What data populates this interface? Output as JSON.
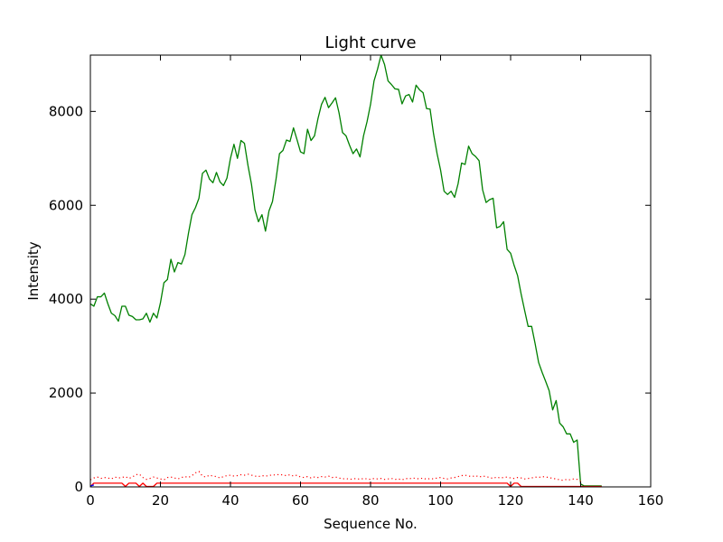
{
  "chart_data": {
    "type": "line",
    "title": "Light curve",
    "xlabel": "Sequence No.",
    "ylabel": "Intensity",
    "xlim": [
      0,
      160
    ],
    "ylim": [
      0,
      9200
    ],
    "xticks": [
      0,
      20,
      40,
      60,
      80,
      100,
      120,
      140,
      160
    ],
    "yticks": [
      0,
      2000,
      4000,
      6000,
      8000
    ],
    "grid": false,
    "legend": "none",
    "series": [
      {
        "color": "#008000",
        "style": "solid",
        "x": [
          0,
          1,
          2,
          3,
          4,
          5,
          6,
          7,
          8,
          9,
          10,
          11,
          12,
          13,
          14,
          15,
          16,
          17,
          18,
          19,
          20,
          21,
          22,
          23,
          24,
          25,
          26,
          27,
          28,
          29,
          30,
          31,
          32,
          33,
          34,
          35,
          36,
          37,
          38,
          39,
          40,
          41,
          42,
          43,
          44,
          45,
          46,
          47,
          48,
          49,
          50,
          51,
          52,
          53,
          54,
          55,
          56,
          57,
          58,
          59,
          60,
          61,
          62,
          63,
          64,
          65,
          66,
          67,
          68,
          69,
          70,
          71,
          72,
          73,
          74,
          75,
          76,
          77,
          78,
          79,
          80,
          81,
          82,
          83,
          84,
          85,
          86,
          87,
          88,
          89,
          90,
          91,
          92,
          93,
          94,
          95,
          96,
          97,
          98,
          99,
          100,
          101,
          102,
          103,
          104,
          105,
          106,
          107,
          108,
          109,
          110,
          111,
          112,
          113,
          114,
          115,
          116,
          117,
          118,
          119,
          120,
          121,
          122,
          123,
          124,
          125,
          126,
          127,
          128,
          129,
          130,
          131,
          132,
          133,
          134,
          135,
          136,
          137,
          138,
          139,
          140,
          141,
          142,
          143,
          144,
          145,
          146
        ],
        "y": [
          3900,
          3850,
          4050,
          4050,
          4130,
          3900,
          3700,
          3650,
          3530,
          3850,
          3850,
          3660,
          3630,
          3560,
          3560,
          3580,
          3700,
          3510,
          3700,
          3600,
          3920,
          4350,
          4420,
          4850,
          4580,
          4780,
          4750,
          4950,
          5400,
          5800,
          5950,
          6150,
          6680,
          6750,
          6560,
          6480,
          6700,
          6500,
          6420,
          6580,
          7000,
          7300,
          7000,
          7380,
          7320,
          6850,
          6450,
          5900,
          5650,
          5800,
          5450,
          5880,
          6080,
          6550,
          7100,
          7170,
          7390,
          7360,
          7650,
          7400,
          7140,
          7100,
          7620,
          7380,
          7480,
          7850,
          8150,
          8300,
          8080,
          8180,
          8290,
          7970,
          7550,
          7480,
          7280,
          7100,
          7200,
          7030,
          7480,
          7780,
          8150,
          8650,
          8900,
          9200,
          9000,
          8650,
          8570,
          8480,
          8470,
          8160,
          8330,
          8360,
          8200,
          8560,
          8460,
          8400,
          8060,
          8050,
          7520,
          7100,
          6750,
          6300,
          6230,
          6300,
          6170,
          6460,
          6900,
          6870,
          7260,
          7100,
          7040,
          6950,
          6330,
          6060,
          6120,
          6150,
          5520,
          5550,
          5650,
          5060,
          4980,
          4720,
          4500,
          4110,
          3760,
          3420,
          3420,
          3050,
          2650,
          2440,
          2250,
          2050,
          1640,
          1840,
          1360,
          1280,
          1130,
          1130,
          950,
          1000,
          60,
          20,
          20,
          20,
          20,
          20,
          20
        ]
      },
      {
        "color": "#ff0000",
        "style": "solid",
        "x": [
          0,
          1,
          2,
          3,
          4,
          5,
          6,
          7,
          8,
          9,
          10,
          11,
          12,
          13,
          14,
          15,
          16,
          17,
          18,
          19,
          20,
          21,
          22,
          23,
          24,
          25,
          26,
          27,
          28,
          29,
          30,
          31,
          32,
          33,
          34,
          35,
          36,
          37,
          38,
          39,
          40,
          41,
          42,
          43,
          44,
          45,
          46,
          47,
          48,
          49,
          50,
          51,
          52,
          53,
          54,
          55,
          56,
          57,
          58,
          59,
          60,
          61,
          62,
          63,
          64,
          65,
          66,
          67,
          68,
          69,
          70,
          71,
          72,
          73,
          74,
          75,
          76,
          77,
          78,
          79,
          80,
          81,
          82,
          83,
          84,
          85,
          86,
          87,
          88,
          89,
          90,
          91,
          92,
          93,
          94,
          95,
          96,
          97,
          98,
          99,
          100,
          101,
          102,
          103,
          104,
          105,
          106,
          107,
          108,
          109,
          110,
          111,
          112,
          113,
          114,
          115,
          116,
          117,
          118,
          119,
          120,
          121,
          122,
          123,
          124,
          125,
          126,
          127,
          128,
          129,
          130,
          131,
          132,
          133,
          134,
          135,
          136,
          137,
          138,
          139,
          140,
          141,
          142,
          143,
          144,
          145,
          146
        ],
        "y": [
          10,
          80,
          80,
          80,
          80,
          80,
          80,
          80,
          80,
          80,
          10,
          80,
          80,
          80,
          10,
          80,
          10,
          10,
          10,
          80,
          80,
          80,
          80,
          80,
          80,
          80,
          80,
          80,
          80,
          80,
          80,
          80,
          80,
          80,
          80,
          80,
          80,
          80,
          80,
          80,
          80,
          80,
          80,
          80,
          80,
          80,
          80,
          80,
          80,
          80,
          80,
          80,
          80,
          80,
          80,
          80,
          80,
          80,
          80,
          80,
          80,
          80,
          80,
          80,
          80,
          80,
          80,
          80,
          80,
          80,
          80,
          80,
          80,
          80,
          80,
          80,
          80,
          80,
          80,
          80,
          80,
          80,
          80,
          80,
          80,
          80,
          80,
          80,
          80,
          80,
          80,
          80,
          80,
          80,
          80,
          80,
          80,
          80,
          80,
          80,
          80,
          80,
          80,
          80,
          80,
          80,
          80,
          80,
          80,
          80,
          80,
          80,
          80,
          80,
          80,
          80,
          80,
          80,
          80,
          80,
          10,
          80,
          80,
          10,
          10,
          10,
          10,
          10,
          10,
          10,
          10,
          10,
          10,
          10,
          10,
          10,
          10,
          10,
          10,
          10,
          10,
          10,
          10,
          10,
          10,
          10,
          10
        ]
      },
      {
        "color": "#ff0000",
        "style": "dotted",
        "x": [
          0,
          1,
          2,
          3,
          4,
          5,
          6,
          7,
          8,
          9,
          10,
          11,
          12,
          13,
          14,
          15,
          16,
          17,
          18,
          19,
          20,
          21,
          22,
          23,
          24,
          25,
          26,
          27,
          28,
          29,
          30,
          31,
          32,
          33,
          34,
          35,
          36,
          37,
          38,
          39,
          40,
          41,
          42,
          43,
          44,
          45,
          46,
          47,
          48,
          49,
          50,
          51,
          52,
          53,
          54,
          55,
          56,
          57,
          58,
          59,
          60,
          61,
          62,
          63,
          64,
          65,
          66,
          67,
          68,
          69,
          70,
          71,
          72,
          73,
          74,
          75,
          76,
          77,
          78,
          79,
          80,
          81,
          82,
          83,
          84,
          85,
          86,
          87,
          88,
          89,
          90,
          91,
          92,
          93,
          94,
          95,
          96,
          97,
          98,
          99,
          100,
          101,
          102,
          103,
          104,
          105,
          106,
          107,
          108,
          109,
          110,
          111,
          112,
          113,
          114,
          115,
          116,
          117,
          118,
          119,
          120,
          121,
          122,
          123,
          124,
          125,
          126,
          127,
          128,
          129,
          130,
          131,
          132,
          133,
          134,
          135,
          136,
          137,
          138,
          139,
          140
        ],
        "y": [
          150,
          190,
          210,
          180,
          200,
          190,
          170,
          210,
          190,
          200,
          220,
          180,
          210,
          260,
          270,
          200,
          160,
          180,
          210,
          190,
          170,
          150,
          200,
          210,
          190,
          170,
          200,
          220,
          200,
          240,
          300,
          330,
          230,
          210,
          250,
          230,
          220,
          190,
          220,
          240,
          250,
          230,
          240,
          260,
          250,
          270,
          250,
          230,
          220,
          240,
          230,
          240,
          260,
          250,
          270,
          250,
          240,
          260,
          230,
          250,
          210,
          200,
          220,
          190,
          210,
          200,
          220,
          210,
          230,
          200,
          210,
          190,
          170,
          180,
          160,
          170,
          180,
          160,
          180,
          170,
          160,
          180,
          170,
          180,
          160,
          170,
          180,
          160,
          170,
          150,
          180,
          170,
          190,
          180,
          170,
          190,
          160,
          180,
          170,
          190,
          200,
          180,
          170,
          190,
          200,
          220,
          240,
          250,
          230,
          220,
          240,
          210,
          230,
          220,
          200,
          180,
          210,
          190,
          200,
          210,
          190,
          180,
          200,
          190,
          170,
          180,
          190,
          210,
          200,
          220,
          210,
          200,
          180,
          170,
          150,
          140,
          160,
          150,
          170,
          160,
          120
        ]
      },
      {
        "color": "#0000ff",
        "style": "solid",
        "x": [
          0,
          1
        ],
        "y": [
          20,
          40
        ]
      }
    ]
  }
}
